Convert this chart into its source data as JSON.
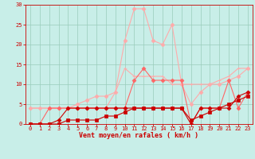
{
  "x": [
    0,
    1,
    2,
    3,
    4,
    5,
    6,
    7,
    8,
    9,
    10,
    11,
    12,
    13,
    14,
    15,
    16,
    17,
    18,
    19,
    20,
    21,
    22,
    23
  ],
  "series": [
    {
      "name": "line_light_wide",
      "color": "#ffaaaa",
      "linewidth": 0.8,
      "marker": "D",
      "markersize": 2.5,
      "y": [
        4,
        4,
        4,
        4,
        4,
        5,
        6,
        7,
        7,
        8,
        21,
        29,
        29,
        21,
        20,
        25,
        10,
        5,
        8,
        10,
        10,
        11,
        12,
        14
      ]
    },
    {
      "name": "line_light_mid",
      "color": "#ffaaaa",
      "linewidth": 0.8,
      "marker": "+",
      "markersize": 3.5,
      "y": [
        4,
        4,
        4,
        4,
        4,
        4,
        4,
        4,
        4,
        8,
        14,
        12,
        12,
        12,
        12,
        10,
        10,
        10,
        10,
        10,
        11,
        12,
        14,
        14
      ]
    },
    {
      "name": "line_mid",
      "color": "#ff6666",
      "linewidth": 0.8,
      "marker": "D",
      "markersize": 2.5,
      "y": [
        0,
        0,
        4,
        4,
        4,
        4,
        4,
        4,
        4,
        4,
        4,
        11,
        14,
        11,
        11,
        11,
        11,
        0,
        4,
        4,
        4,
        11,
        4,
        8
      ]
    },
    {
      "name": "line_dark_flat",
      "color": "#cc0000",
      "linewidth": 0.8,
      "marker": "s",
      "markersize": 2.5,
      "y": [
        0,
        0,
        0,
        0,
        1,
        1,
        1,
        1,
        2,
        2,
        3,
        4,
        4,
        4,
        4,
        4,
        4,
        1,
        2,
        3,
        4,
        5,
        6,
        7
      ]
    },
    {
      "name": "line_dark_bottom",
      "color": "#cc0000",
      "linewidth": 0.8,
      "marker": "D",
      "markersize": 2.5,
      "y": [
        0,
        0,
        0,
        1,
        4,
        4,
        4,
        4,
        4,
        4,
        4,
        4,
        4,
        4,
        4,
        4,
        4,
        0,
        4,
        4,
        4,
        4,
        7,
        8
      ]
    }
  ],
  "xlabel": "Vent moyen/en rafales ( km/h )",
  "xlim": [
    -0.5,
    23.5
  ],
  "ylim": [
    0,
    30
  ],
  "yticks": [
    0,
    5,
    10,
    15,
    20,
    25,
    30
  ],
  "xticks": [
    0,
    1,
    2,
    3,
    4,
    5,
    6,
    7,
    8,
    9,
    10,
    11,
    12,
    13,
    14,
    15,
    16,
    17,
    18,
    19,
    20,
    21,
    22,
    23
  ],
  "bg_color": "#c8eee8",
  "grid_color": "#99ccbb",
  "tick_color": "#cc0000",
  "label_color": "#cc0000",
  "tick_fontsize": 5.0,
  "xlabel_fontsize": 6.0
}
